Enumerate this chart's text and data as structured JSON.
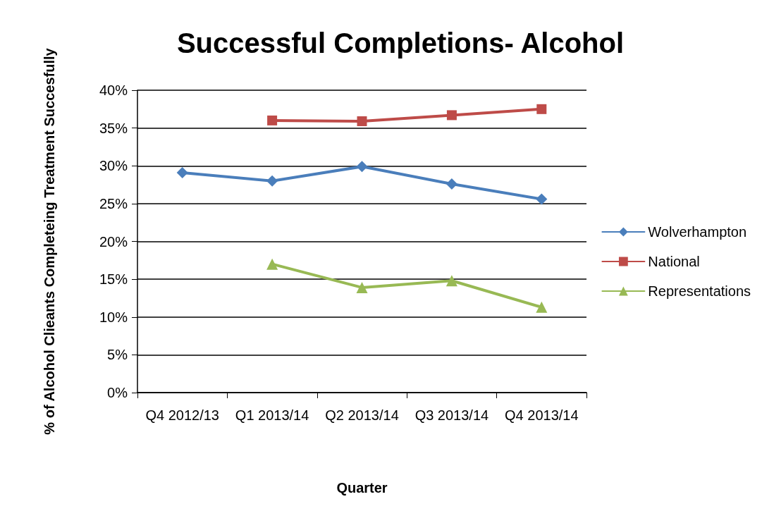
{
  "chart_data": {
    "type": "line",
    "title": "Successful Completions- Alcohol",
    "xlabel": "Quarter",
    "ylabel": "% of Alcohol Clieants Completeing Treatment Succesfully",
    "categories": [
      "Q4 2012/13",
      "Q1 2013/14",
      "Q2 2013/14",
      "Q3 2013/14",
      "Q4 2013/14"
    ],
    "series": [
      {
        "name": "Wolverhampton",
        "color": "#4a7ebb",
        "marker": "diamond",
        "values": [
          29.1,
          28.0,
          29.9,
          27.6,
          25.6
        ]
      },
      {
        "name": "National",
        "color": "#be4b48",
        "marker": "square",
        "values": [
          null,
          36.0,
          35.9,
          36.7,
          37.5
        ]
      },
      {
        "name": "Representations",
        "color": "#98b954",
        "marker": "triangle",
        "values": [
          null,
          17.0,
          13.9,
          14.8,
          11.3
        ]
      }
    ],
    "ylim": [
      0,
      40
    ],
    "yticks": [
      {
        "value": 0,
        "label": "0%"
      },
      {
        "value": 5,
        "label": "5%"
      },
      {
        "value": 10,
        "label": "10%"
      },
      {
        "value": 15,
        "label": "15%"
      },
      {
        "value": 20,
        "label": "20%"
      },
      {
        "value": 25,
        "label": "25%"
      },
      {
        "value": 30,
        "label": "30%"
      },
      {
        "value": 35,
        "label": "35%"
      },
      {
        "value": 40,
        "label": "40%"
      }
    ],
    "grid": "y",
    "legend": "right",
    "line_style": "solid"
  }
}
